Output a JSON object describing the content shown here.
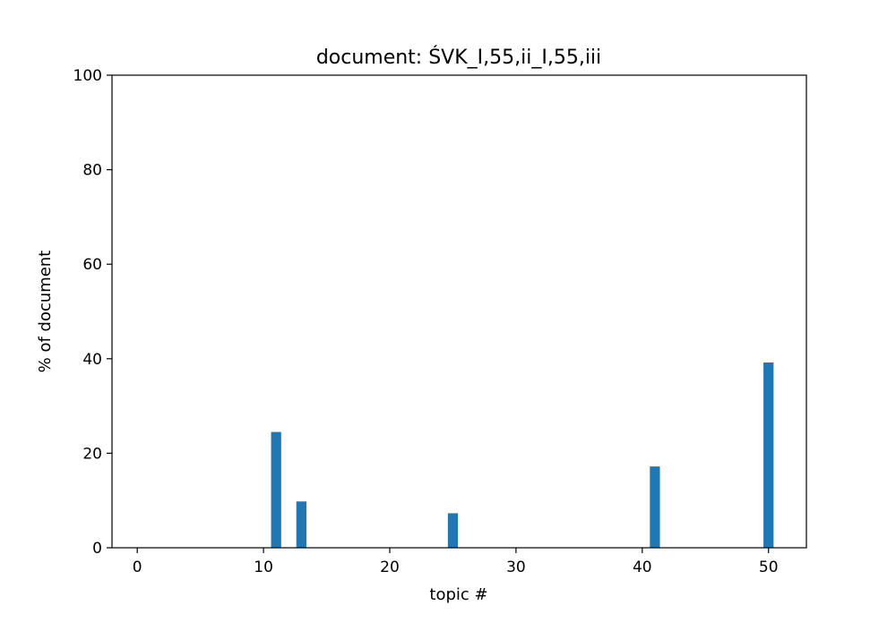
{
  "chart_data": {
    "type": "bar",
    "title": "document: ŚVK_I,55,ii_I,55,iii",
    "xlabel": "topic #",
    "ylabel": "% of document",
    "xlim": [
      -2,
      53
    ],
    "ylim": [
      0,
      100
    ],
    "xticks": [
      0,
      10,
      20,
      30,
      40,
      50
    ],
    "yticks": [
      0,
      20,
      40,
      60,
      80,
      100
    ],
    "bar_width": 0.8,
    "color": "#1f77b4",
    "grid": false,
    "x": [
      11,
      13,
      25,
      41,
      50
    ],
    "values": [
      24.5,
      9.8,
      7.3,
      17.2,
      39.2
    ]
  }
}
